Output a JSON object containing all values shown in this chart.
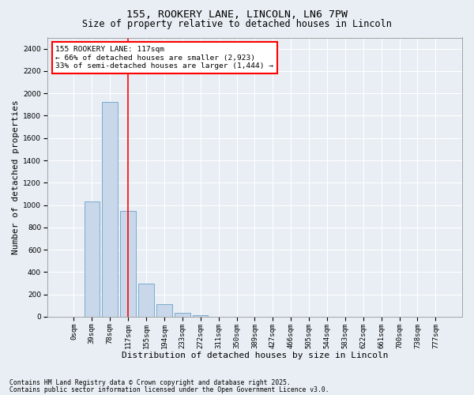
{
  "title1": "155, ROOKERY LANE, LINCOLN, LN6 7PW",
  "title2": "Size of property relative to detached houses in Lincoln",
  "xlabel": "Distribution of detached houses by size in Lincoln",
  "ylabel": "Number of detached properties",
  "categories": [
    "0sqm",
    "39sqm",
    "78sqm",
    "117sqm",
    "155sqm",
    "194sqm",
    "233sqm",
    "272sqm",
    "311sqm",
    "350sqm",
    "389sqm",
    "427sqm",
    "466sqm",
    "505sqm",
    "544sqm",
    "583sqm",
    "622sqm",
    "661sqm",
    "700sqm",
    "738sqm",
    "777sqm"
  ],
  "values": [
    0,
    1030,
    1920,
    950,
    295,
    110,
    38,
    13,
    0,
    0,
    0,
    0,
    0,
    0,
    0,
    0,
    0,
    0,
    0,
    0,
    0
  ],
  "bar_color": "#c8d8ea",
  "bar_edge_color": "#7aaacc",
  "vline_x": 3,
  "vline_color": "red",
  "annotation_text": "155 ROOKERY LANE: 117sqm\n← 66% of detached houses are smaller (2,923)\n33% of semi-detached houses are larger (1,444) →",
  "annotation_box_color": "white",
  "annotation_box_edge": "red",
  "ylim": [
    0,
    2500
  ],
  "yticks": [
    0,
    200,
    400,
    600,
    800,
    1000,
    1200,
    1400,
    1600,
    1800,
    2000,
    2200,
    2400
  ],
  "footnote1": "Contains HM Land Registry data © Crown copyright and database right 2025.",
  "footnote2": "Contains public sector information licensed under the Open Government Licence v3.0.",
  "bg_color": "#e8eef4",
  "plot_bg_color": "#e8eef4",
  "grid_color": "white",
  "title_fontsize": 9.5,
  "subtitle_fontsize": 8.5,
  "xlabel_fontsize": 8,
  "ylabel_fontsize": 8,
  "tick_fontsize": 6.5,
  "annot_fontsize": 6.8,
  "footnote_fontsize": 5.8
}
